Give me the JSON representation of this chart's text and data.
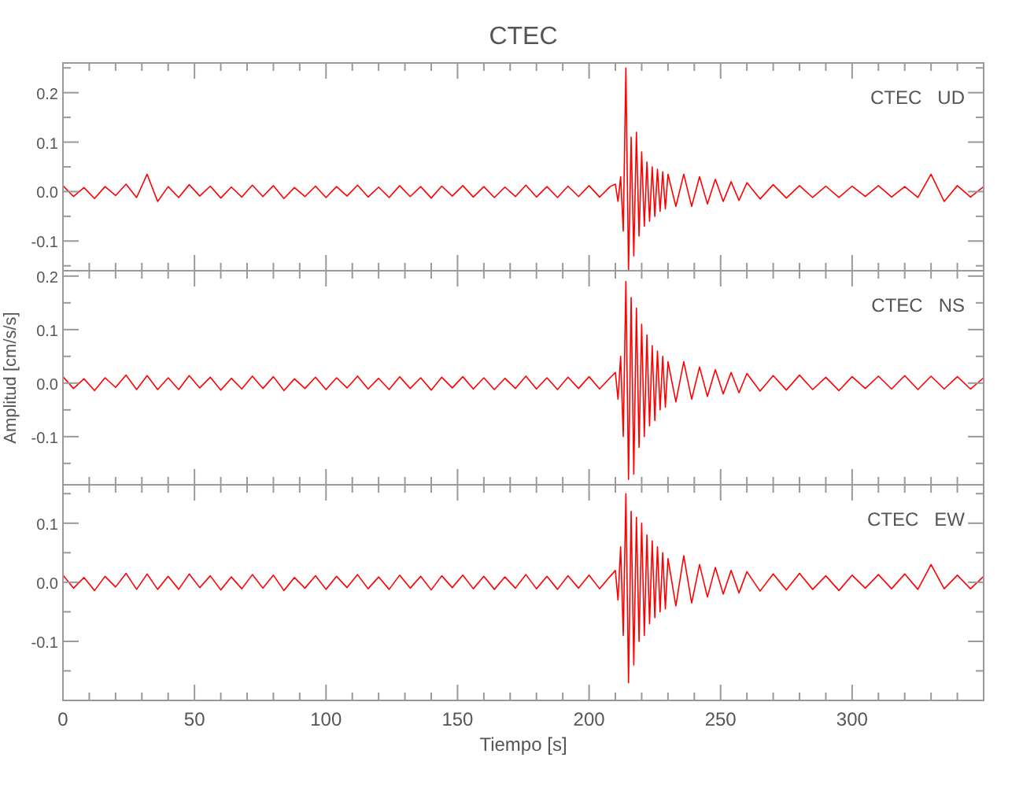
{
  "chart_data": [
    {
      "type": "line",
      "title": "CTEC",
      "annotations": [
        "CTEC   UD"
      ],
      "tick_labels": "y",
      "xlim": [
        0,
        350
      ],
      "xticks": [
        0,
        {
          "value": 10,
          "label": null
        },
        {
          "value": 20,
          "label": null
        },
        {
          "value": 30,
          "label": null
        },
        {
          "value": 40,
          "label": null
        },
        50,
        {
          "value": 60,
          "label": null
        },
        {
          "value": 70,
          "label": null
        },
        {
          "value": 80,
          "label": null
        },
        {
          "value": 90,
          "label": null
        },
        100,
        {
          "value": 110,
          "label": null
        },
        {
          "value": 120,
          "label": null
        },
        {
          "value": 130,
          "label": null
        },
        {
          "value": 140,
          "label": null
        },
        150,
        {
          "value": 160,
          "label": null
        },
        {
          "value": 170,
          "label": null
        },
        {
          "value": 180,
          "label": null
        },
        {
          "value": 190,
          "label": null
        },
        200,
        {
          "value": 210,
          "label": null
        },
        {
          "value": 220,
          "label": null
        },
        {
          "value": 230,
          "label": null
        },
        {
          "value": 240,
          "label": null
        },
        250,
        {
          "value": 260,
          "label": null
        },
        {
          "value": 270,
          "label": null
        },
        {
          "value": 280,
          "label": null
        },
        {
          "value": 290,
          "label": null
        },
        300,
        {
          "value": 310,
          "label": null
        },
        {
          "value": 320,
          "label": null
        },
        {
          "value": 330,
          "label": null
        },
        {
          "value": 340,
          "label": null
        }
      ],
      "ylim": [
        -0.16,
        0.26
      ],
      "yticks": [
        {
          "value": -0.15,
          "label": null
        },
        -0.1,
        {
          "value": -0.05,
          "label": null
        },
        {
          "value": 0,
          "label": "0.0"
        },
        {
          "value": 0.05,
          "label": null
        },
        0.1,
        {
          "value": 0.15,
          "label": null
        },
        0.2,
        {
          "value": 0.25,
          "label": null
        }
      ],
      "x": [
        0,
        4,
        8,
        12,
        16,
        20,
        24,
        28,
        32,
        36,
        40,
        44,
        48,
        52,
        56,
        60,
        64,
        68,
        72,
        76,
        80,
        84,
        88,
        92,
        96,
        100,
        104,
        108,
        112,
        116,
        120,
        124,
        128,
        132,
        136,
        140,
        144,
        148,
        152,
        156,
        160,
        164,
        168,
        172,
        176,
        180,
        184,
        188,
        192,
        196,
        200,
        204,
        208,
        210,
        211,
        212,
        213,
        214,
        215,
        216,
        217,
        218,
        219,
        220,
        221,
        222,
        223,
        224,
        225,
        226,
        227,
        228,
        229,
        230,
        233,
        236,
        239,
        242,
        245,
        248,
        251,
        254,
        257,
        260,
        265,
        270,
        275,
        280,
        285,
        290,
        295,
        300,
        305,
        310,
        315,
        320,
        325,
        330,
        335,
        340,
        345,
        350
      ],
      "series": [
        {
          "color": "#ff0000",
          "values": [
            0.012,
            -0.01,
            0.008,
            -0.014,
            0.01,
            -0.008,
            0.015,
            -0.012,
            0.035,
            -0.02,
            0.01,
            -0.012,
            0.014,
            -0.009,
            0.011,
            -0.013,
            0.009,
            -0.011,
            0.013,
            -0.01,
            0.012,
            -0.014,
            0.008,
            -0.01,
            0.011,
            -0.012,
            0.01,
            -0.009,
            0.013,
            -0.011,
            0.009,
            -0.012,
            0.012,
            -0.01,
            0.01,
            -0.013,
            0.011,
            -0.009,
            0.012,
            -0.011,
            0.01,
            -0.012,
            0.009,
            -0.01,
            0.013,
            -0.011,
            0.01,
            -0.012,
            0.011,
            -0.01,
            0.012,
            -0.011,
            0.01,
            0.015,
            -0.02,
            0.03,
            -0.08,
            0.25,
            -0.16,
            0.11,
            -0.13,
            0.12,
            -0.09,
            0.08,
            -0.07,
            0.06,
            -0.06,
            0.05,
            -0.05,
            0.045,
            -0.04,
            0.04,
            -0.035,
            0.035,
            -0.03,
            0.035,
            -0.03,
            0.03,
            -0.025,
            0.025,
            -0.02,
            0.02,
            -0.018,
            0.018,
            -0.015,
            0.014,
            -0.013,
            0.012,
            -0.012,
            0.011,
            -0.012,
            0.011,
            -0.01,
            0.012,
            -0.011,
            0.01,
            -0.012,
            0.035,
            -0.02,
            0.012,
            -0.011,
            0.01
          ]
        }
      ]
    },
    {
      "type": "line",
      "ylabel": "Amplitud [cm/s/s]",
      "annotations": [
        "CTEC   NS"
      ],
      "tick_labels": "y",
      "xlim": [
        0,
        350
      ],
      "xticks": [
        0,
        {
          "value": 10,
          "label": null
        },
        {
          "value": 20,
          "label": null
        },
        {
          "value": 30,
          "label": null
        },
        {
          "value": 40,
          "label": null
        },
        50,
        {
          "value": 60,
          "label": null
        },
        {
          "value": 70,
          "label": null
        },
        {
          "value": 80,
          "label": null
        },
        {
          "value": 90,
          "label": null
        },
        100,
        {
          "value": 110,
          "label": null
        },
        {
          "value": 120,
          "label": null
        },
        {
          "value": 130,
          "label": null
        },
        {
          "value": 140,
          "label": null
        },
        150,
        {
          "value": 160,
          "label": null
        },
        {
          "value": 170,
          "label": null
        },
        {
          "value": 180,
          "label": null
        },
        {
          "value": 190,
          "label": null
        },
        200,
        {
          "value": 210,
          "label": null
        },
        {
          "value": 220,
          "label": null
        },
        {
          "value": 230,
          "label": null
        },
        {
          "value": 240,
          "label": null
        },
        250,
        {
          "value": 260,
          "label": null
        },
        {
          "value": 270,
          "label": null
        },
        {
          "value": 280,
          "label": null
        },
        {
          "value": 290,
          "label": null
        },
        300,
        {
          "value": 310,
          "label": null
        },
        {
          "value": 320,
          "label": null
        },
        {
          "value": 330,
          "label": null
        },
        {
          "value": 340,
          "label": null
        }
      ],
      "ylim": [
        -0.19,
        0.21
      ],
      "yticks": [
        {
          "value": -0.15,
          "label": null
        },
        -0.1,
        {
          "value": -0.05,
          "label": null
        },
        {
          "value": 0,
          "label": "0.0"
        },
        {
          "value": 0.05,
          "label": null
        },
        0.1,
        {
          "value": 0.15,
          "label": null
        },
        0.2
      ],
      "x": [
        0,
        4,
        8,
        12,
        16,
        20,
        24,
        28,
        32,
        36,
        40,
        44,
        48,
        52,
        56,
        60,
        64,
        68,
        72,
        76,
        80,
        84,
        88,
        92,
        96,
        100,
        104,
        108,
        112,
        116,
        120,
        124,
        128,
        132,
        136,
        140,
        144,
        148,
        152,
        156,
        160,
        164,
        168,
        172,
        176,
        180,
        184,
        188,
        192,
        196,
        200,
        204,
        208,
        210,
        211,
        212,
        213,
        214,
        215,
        216,
        217,
        218,
        219,
        220,
        221,
        222,
        223,
        224,
        225,
        226,
        227,
        228,
        229,
        230,
        233,
        236,
        239,
        242,
        245,
        248,
        251,
        254,
        257,
        260,
        265,
        270,
        275,
        280,
        285,
        290,
        295,
        300,
        305,
        310,
        315,
        320,
        325,
        330,
        335,
        340,
        345,
        350
      ],
      "series": [
        {
          "color": "#ff0000",
          "values": [
            0.012,
            -0.01,
            0.008,
            -0.014,
            0.01,
            -0.008,
            0.015,
            -0.012,
            0.014,
            -0.012,
            0.01,
            -0.012,
            0.014,
            -0.009,
            0.011,
            -0.013,
            0.009,
            -0.011,
            0.013,
            -0.01,
            0.012,
            -0.014,
            0.008,
            -0.01,
            0.011,
            -0.012,
            0.01,
            -0.009,
            0.013,
            -0.011,
            0.009,
            -0.012,
            0.012,
            -0.01,
            0.01,
            -0.013,
            0.011,
            -0.009,
            0.012,
            -0.011,
            0.01,
            -0.012,
            0.009,
            -0.01,
            0.013,
            -0.011,
            0.01,
            -0.012,
            0.011,
            -0.01,
            0.012,
            -0.011,
            0.01,
            0.02,
            -0.03,
            0.05,
            -0.1,
            0.19,
            -0.18,
            0.16,
            -0.17,
            0.14,
            -0.12,
            0.11,
            -0.1,
            0.09,
            -0.08,
            0.07,
            -0.07,
            0.06,
            -0.05,
            0.05,
            -0.045,
            0.04,
            -0.035,
            0.04,
            -0.03,
            0.03,
            -0.025,
            0.025,
            -0.02,
            0.02,
            -0.018,
            0.018,
            -0.015,
            0.014,
            -0.013,
            0.015,
            -0.012,
            0.011,
            -0.014,
            0.012,
            -0.01,
            0.013,
            -0.011,
            0.014,
            -0.012,
            0.013,
            -0.011,
            0.012,
            -0.011,
            0.01
          ]
        }
      ]
    },
    {
      "type": "line",
      "xlabel": "Tiempo [s]",
      "annotations": [
        "CTEC   EW"
      ],
      "xlim": [
        0,
        350
      ],
      "xticks": [
        0,
        {
          "value": 10,
          "label": null
        },
        {
          "value": 20,
          "label": null
        },
        {
          "value": 30,
          "label": null
        },
        {
          "value": 40,
          "label": null
        },
        50,
        {
          "value": 60,
          "label": null
        },
        {
          "value": 70,
          "label": null
        },
        {
          "value": 80,
          "label": null
        },
        {
          "value": 90,
          "label": null
        },
        100,
        {
          "value": 110,
          "label": null
        },
        {
          "value": 120,
          "label": null
        },
        {
          "value": 130,
          "label": null
        },
        {
          "value": 140,
          "label": null
        },
        150,
        {
          "value": 160,
          "label": null
        },
        {
          "value": 170,
          "label": null
        },
        {
          "value": 180,
          "label": null
        },
        {
          "value": 190,
          "label": null
        },
        200,
        {
          "value": 210,
          "label": null
        },
        {
          "value": 220,
          "label": null
        },
        {
          "value": 230,
          "label": null
        },
        {
          "value": 240,
          "label": null
        },
        250,
        {
          "value": 260,
          "label": null
        },
        {
          "value": 270,
          "label": null
        },
        {
          "value": 280,
          "label": null
        },
        {
          "value": 290,
          "label": null
        },
        300,
        {
          "value": 310,
          "label": null
        },
        {
          "value": 320,
          "label": null
        },
        {
          "value": 330,
          "label": null
        },
        {
          "value": 340,
          "label": null
        }
      ],
      "ylim": [
        -0.2,
        0.165
      ],
      "yticks": [
        {
          "value": -0.15,
          "label": null
        },
        -0.1,
        {
          "value": -0.05,
          "label": null
        },
        {
          "value": 0,
          "label": "0.0"
        },
        {
          "value": 0.05,
          "label": null
        },
        0.1,
        {
          "value": 0.15,
          "label": null
        }
      ],
      "x": [
        0,
        4,
        8,
        12,
        16,
        20,
        24,
        28,
        32,
        36,
        40,
        44,
        48,
        52,
        56,
        60,
        64,
        68,
        72,
        76,
        80,
        84,
        88,
        92,
        96,
        100,
        104,
        108,
        112,
        116,
        120,
        124,
        128,
        132,
        136,
        140,
        144,
        148,
        152,
        156,
        160,
        164,
        168,
        172,
        176,
        180,
        184,
        188,
        192,
        196,
        200,
        204,
        208,
        210,
        211,
        212,
        213,
        214,
        215,
        216,
        217,
        218,
        219,
        220,
        221,
        222,
        223,
        224,
        225,
        226,
        227,
        228,
        229,
        230,
        233,
        236,
        239,
        242,
        245,
        248,
        251,
        254,
        257,
        260,
        265,
        270,
        275,
        280,
        285,
        290,
        295,
        300,
        305,
        310,
        315,
        320,
        325,
        330,
        335,
        340,
        345,
        350
      ],
      "series": [
        {
          "color": "#ff0000",
          "values": [
            0.012,
            -0.01,
            0.008,
            -0.014,
            0.01,
            -0.008,
            0.015,
            -0.012,
            0.014,
            -0.012,
            0.01,
            -0.012,
            0.014,
            -0.009,
            0.011,
            -0.013,
            0.009,
            -0.011,
            0.013,
            -0.01,
            0.012,
            -0.014,
            0.008,
            -0.01,
            0.011,
            -0.012,
            0.01,
            -0.009,
            0.013,
            -0.011,
            0.009,
            -0.012,
            0.012,
            -0.01,
            0.01,
            -0.013,
            0.011,
            -0.009,
            0.012,
            -0.011,
            0.01,
            -0.012,
            0.009,
            -0.01,
            0.013,
            -0.011,
            0.01,
            -0.012,
            0.011,
            -0.01,
            0.012,
            -0.011,
            0.01,
            0.02,
            -0.03,
            0.06,
            -0.09,
            0.15,
            -0.17,
            0.12,
            -0.14,
            0.11,
            -0.1,
            0.1,
            -0.09,
            0.08,
            -0.07,
            0.07,
            -0.06,
            0.06,
            -0.05,
            0.05,
            -0.045,
            0.04,
            -0.04,
            0.045,
            -0.035,
            0.03,
            -0.025,
            0.025,
            -0.02,
            0.02,
            -0.018,
            0.018,
            -0.015,
            0.014,
            -0.013,
            0.015,
            -0.012,
            0.011,
            -0.014,
            0.012,
            -0.01,
            0.013,
            -0.011,
            0.014,
            -0.012,
            0.03,
            -0.011,
            0.012,
            -0.011,
            0.01
          ]
        }
      ]
    }
  ]
}
